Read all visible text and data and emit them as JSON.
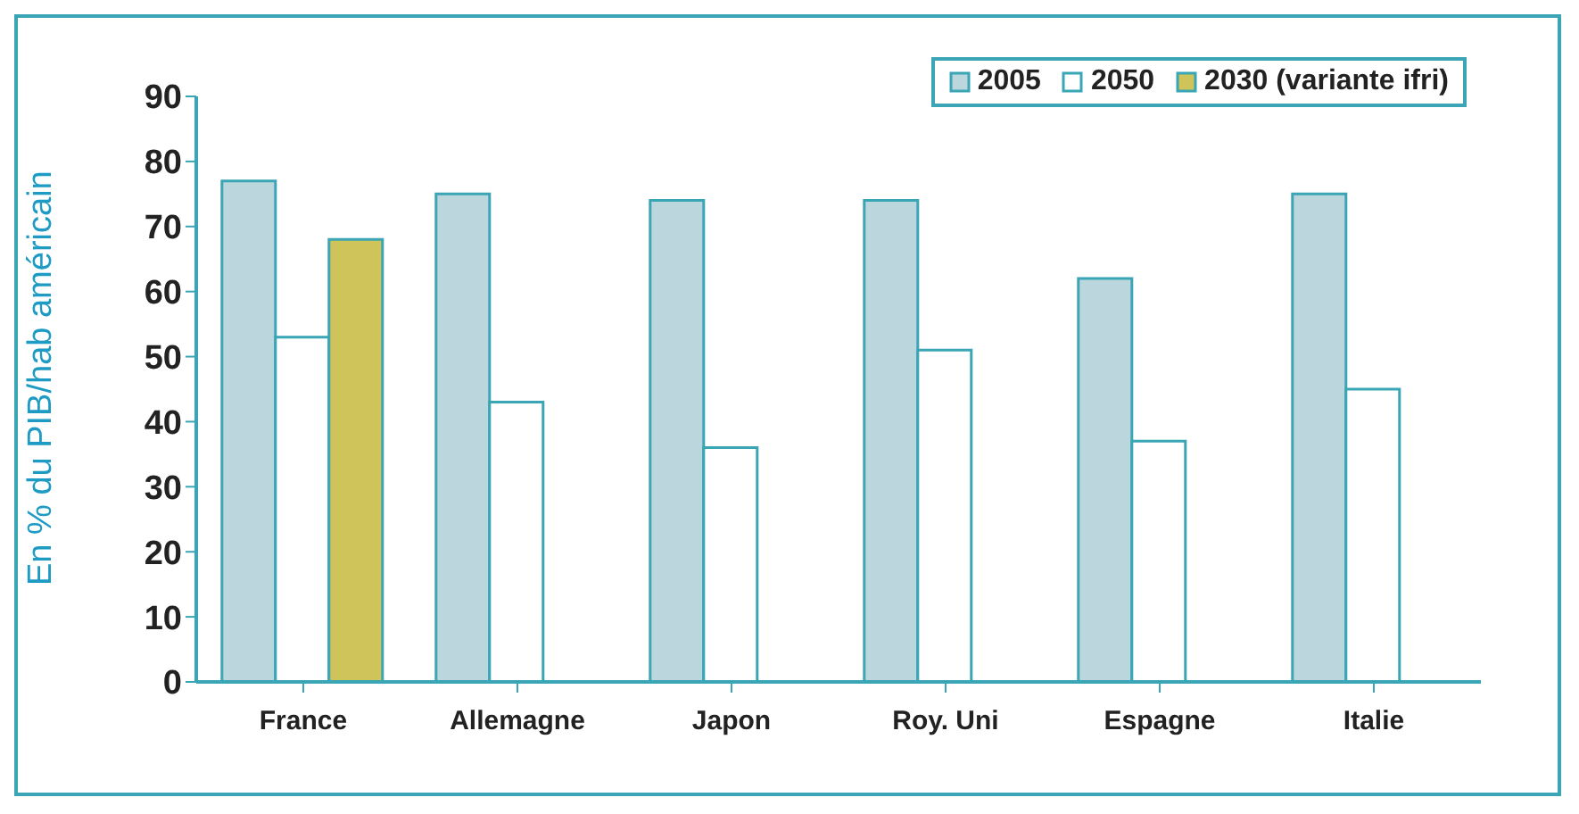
{
  "chart_data": {
    "type": "bar",
    "ylabel": "En % du PIB/hab américain",
    "categories": [
      "France",
      "Allemagne",
      "Japon",
      "Roy. Uni",
      "Espagne",
      "Italie"
    ],
    "series": [
      {
        "name": "2005",
        "color": "#bcd6dd",
        "values": [
          77,
          75,
          74,
          74,
          62,
          75
        ]
      },
      {
        "name": "2050",
        "color": "#ffffff",
        "values": [
          53,
          43,
          36,
          51,
          37,
          45
        ]
      },
      {
        "name": "2030 (variante ifri)",
        "color": "#cfc45a",
        "values": [
          68,
          null,
          null,
          null,
          null,
          null
        ]
      }
    ],
    "ylim": [
      0,
      90
    ],
    "yticks": [
      0,
      10,
      20,
      30,
      40,
      50,
      60,
      70,
      80,
      90
    ],
    "grid": false,
    "legend": "top right"
  }
}
